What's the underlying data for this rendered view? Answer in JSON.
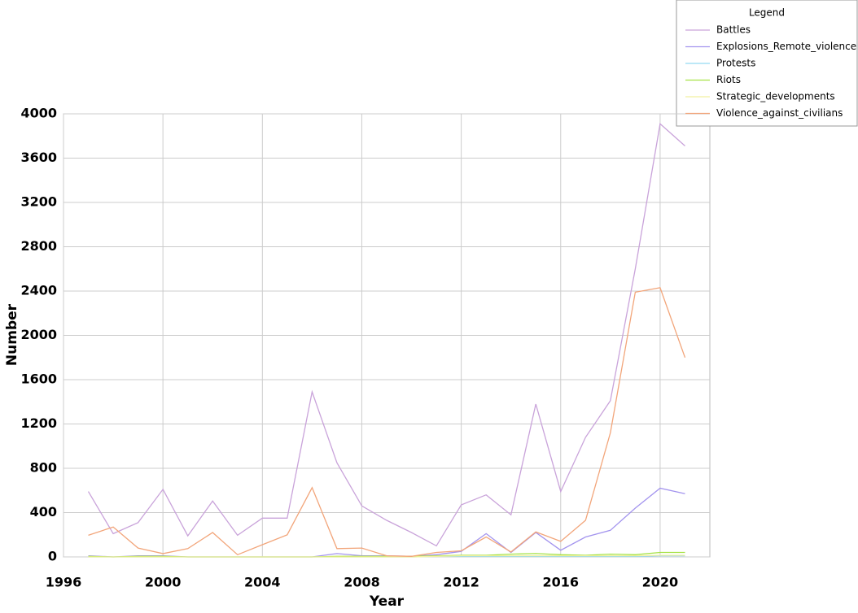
{
  "chart_data": {
    "type": "line",
    "x_label": "Year",
    "y_label": "Number",
    "legend_title": "Legend",
    "legend_position": "top-right",
    "grid": true,
    "x": [
      1997,
      1998,
      1999,
      2000,
      2001,
      2002,
      2003,
      2004,
      2005,
      2006,
      2007,
      2008,
      2009,
      2010,
      2011,
      2012,
      2013,
      2014,
      2015,
      2016,
      2017,
      2018,
      2019,
      2020,
      2021
    ],
    "xlim": [
      1996,
      2022
    ],
    "xticks": [
      1996,
      2000,
      2004,
      2008,
      2012,
      2016,
      2020
    ],
    "ylim": [
      0,
      4000
    ],
    "yticks": [
      0,
      400,
      800,
      1200,
      1600,
      2000,
      2400,
      2800,
      3200,
      3600,
      4000
    ],
    "series": [
      {
        "name": "Battles",
        "color": "#c9a3da",
        "values": [
          590,
          210,
          310,
          610,
          190,
          505,
          195,
          350,
          350,
          1490,
          850,
          460,
          330,
          220,
          100,
          470,
          560,
          380,
          1380,
          590,
          1080,
          1410,
          2600,
          3910,
          3710
        ]
      },
      {
        "name": "Explosions_Remote_violence",
        "color": "#a394ee",
        "values": [
          10,
          0,
          10,
          10,
          0,
          0,
          0,
          0,
          0,
          0,
          30,
          10,
          10,
          5,
          20,
          50,
          210,
          40,
          220,
          60,
          180,
          240,
          440,
          620,
          570
        ]
      },
      {
        "name": "Protests",
        "color": "#93d9f2",
        "values": [
          0,
          0,
          0,
          0,
          0,
          0,
          0,
          0,
          0,
          0,
          0,
          0,
          0,
          0,
          5,
          5,
          5,
          5,
          5,
          5,
          5,
          5,
          5,
          10,
          10
        ]
      },
      {
        "name": "Riots",
        "color": "#a6e245",
        "values": [
          5,
          0,
          5,
          5,
          0,
          0,
          0,
          0,
          0,
          0,
          5,
          5,
          5,
          5,
          10,
          15,
          15,
          25,
          30,
          20,
          15,
          25,
          20,
          40,
          40
        ]
      },
      {
        "name": "Strategic_developments",
        "color": "#f2f0a0",
        "values": [
          0,
          0,
          0,
          0,
          0,
          0,
          0,
          0,
          0,
          0,
          0,
          0,
          0,
          0,
          5,
          10,
          10,
          10,
          10,
          10,
          10,
          10,
          10,
          15,
          15
        ]
      },
      {
        "name": "Violence_against_civilians",
        "color": "#f2a57a",
        "values": [
          195,
          270,
          80,
          30,
          75,
          220,
          20,
          110,
          200,
          625,
          75,
          80,
          10,
          5,
          40,
          55,
          180,
          45,
          225,
          140,
          330,
          1120,
          2390,
          2430,
          1800
        ]
      }
    ]
  }
}
